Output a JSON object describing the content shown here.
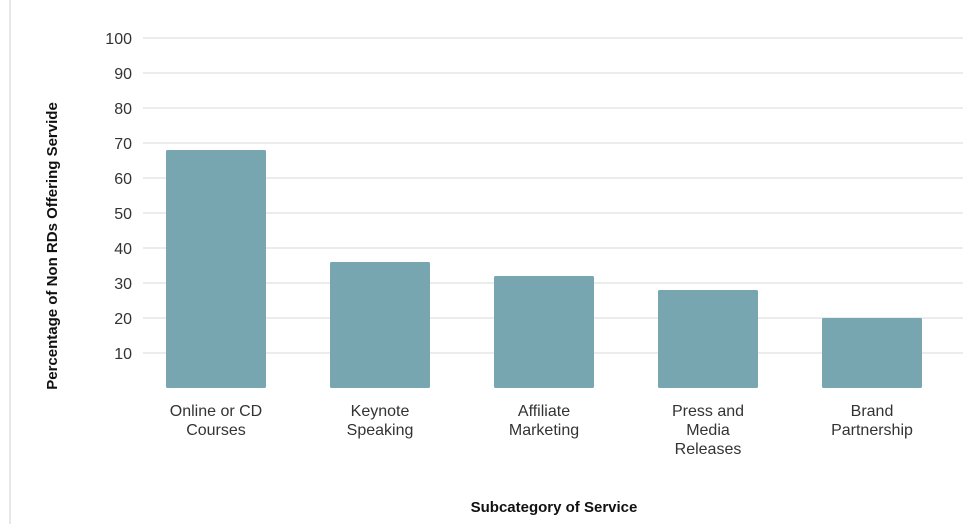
{
  "chart_data": {
    "type": "bar",
    "categories": [
      [
        "Online or CD",
        "Courses"
      ],
      [
        "Keynote",
        "Speaking"
      ],
      [
        "Affiliate",
        "Marketing"
      ],
      [
        "Press and",
        "Media",
        "Releases"
      ],
      [
        "Brand",
        "Partnership"
      ]
    ],
    "values": [
      68,
      36,
      32,
      28,
      20
    ],
    "xlabel": "Subcategory of Service",
    "ylabel": "Percentage of Non RDs Offering Servide",
    "ylim": [
      0,
      100
    ],
    "yticks": [
      10,
      20,
      30,
      40,
      50,
      60,
      70,
      80,
      90,
      100
    ],
    "grid": true,
    "legend": "none",
    "colors": {
      "bar": "#77a6b0",
      "grid": "#d9d9d9",
      "text": "#333333"
    }
  }
}
